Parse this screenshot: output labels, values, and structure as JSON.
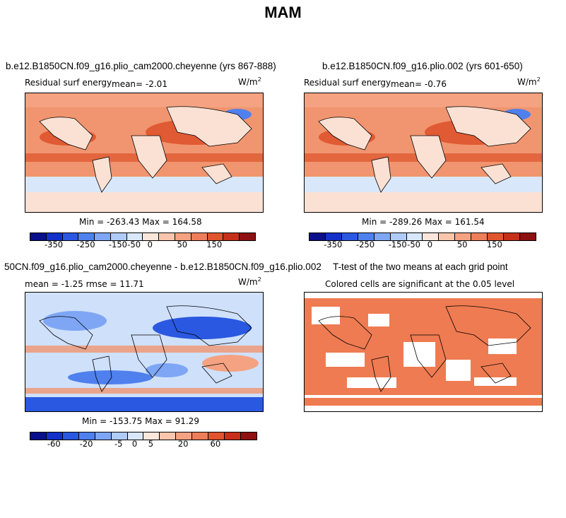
{
  "page_title": "MAM",
  "chart_data": [
    {
      "type": "heatmap",
      "title": "b.e12.B1850CN.f09_g16.plio_cam2000.cheyenne (yrs 867-888)",
      "subtitle_left": "Residual surf energy",
      "mean_label": "mean=  -2.01",
      "units": "W/m",
      "units_sup": "2",
      "minmax": "Min = -263.43 Max = 164.58",
      "colorbar_ticks": [
        "-350",
        "-250",
        "-150",
        "-50",
        "0",
        "50",
        "150"
      ]
    },
    {
      "type": "heatmap",
      "title": "b.e12.B1850CN.f09_g16.plio.002 (yrs 601-650)",
      "subtitle_left": "Residual surf energy",
      "mean_label": "mean=  -0.76",
      "units": "W/m",
      "units_sup": "2",
      "minmax": "Min = -289.26 Max = 161.54",
      "colorbar_ticks": [
        "-350",
        "-250",
        "-150",
        "-50",
        "0",
        "50",
        "150"
      ]
    },
    {
      "type": "heatmap",
      "title": "50CN.f09_g16.plio_cam2000.cheyenne - b.e12.B1850CN.f09_g16.plio.002",
      "stats_label": "mean =  -1.25     rmse =  11.71",
      "units": "W/m",
      "units_sup": "2",
      "minmax": "Min = -153.75 Max =  91.29",
      "colorbar_ticks": [
        "-60",
        "-20",
        "-5",
        "0",
        "5",
        "20",
        "60"
      ]
    },
    {
      "type": "heatmap",
      "title": "T-test of the two means at each grid point",
      "subtitle": "Colored cells are significant at the 0.05 level"
    }
  ],
  "colors": {
    "colorbar": [
      "#0a0f8c",
      "#1330c8",
      "#2a58e0",
      "#4f80ee",
      "#7ea6f5",
      "#b0cbf8",
      "#d9e7fb",
      "#fbe6dc",
      "#f9c6ad",
      "#f4a281",
      "#ee7d5a",
      "#e0542e",
      "#c6301a",
      "#8f1010"
    ],
    "ocean_pos": "#f0956f",
    "ocean_strong": "#e05a33",
    "land": "#fbe1d4",
    "neg_light": "#cfe0fb",
    "neg_mid": "#7ea6f5",
    "neg_strong": "#2a58e0",
    "ttest_fill": "#ef7b52"
  }
}
